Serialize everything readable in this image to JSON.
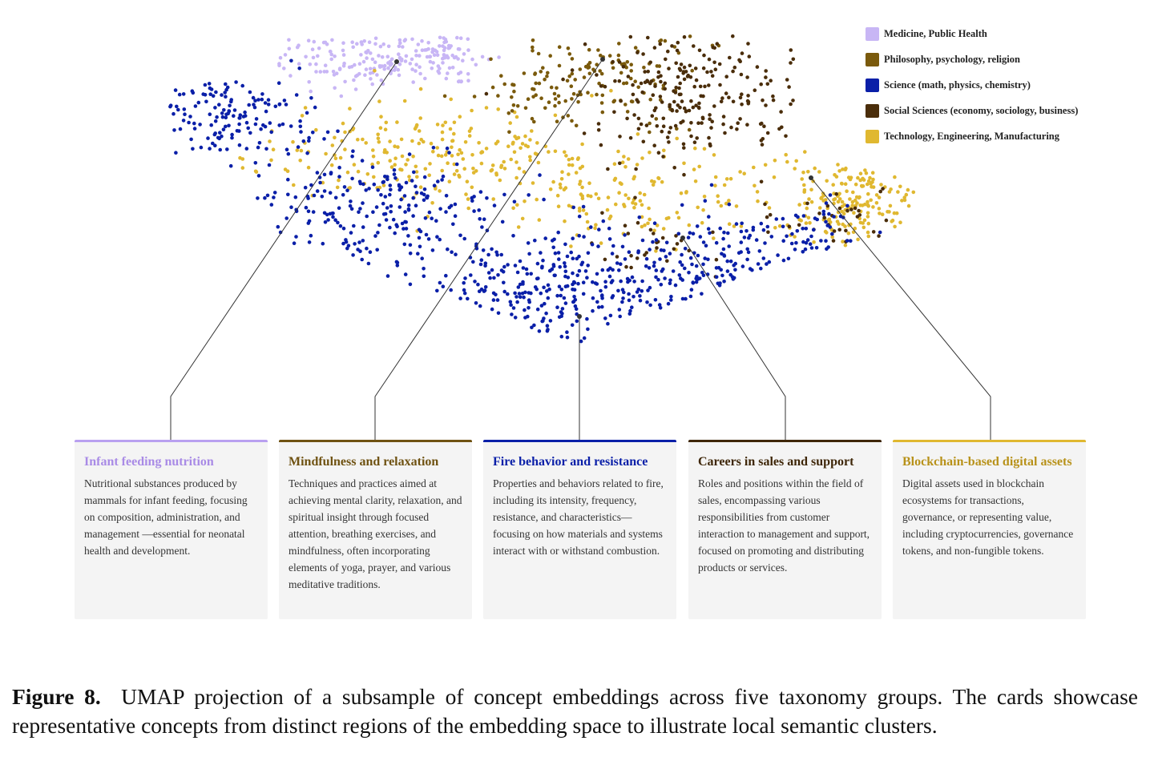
{
  "chart_data": {
    "type": "scatter",
    "title": "",
    "xlabel": "",
    "ylabel": "",
    "axes_visible": false,
    "grid": false,
    "legend_position": "top-right",
    "series": [
      {
        "name": "Medicine, Public Health",
        "color": "#c8b6f5",
        "region": "upper-left"
      },
      {
        "name": "Philosophy, psychology, religion",
        "color": "#7a5a0c",
        "region": "upper-center"
      },
      {
        "name": "Science (math, physics, chemistry)",
        "color": "#0a1fa8",
        "region": "left and lower-center"
      },
      {
        "name": "Social Sciences (economy, sociology, business)",
        "color": "#4a2d0a",
        "region": "upper-right"
      },
      {
        "name": "Technology, Engineering, Manufacturing",
        "color": "#e0b830",
        "region": "center band and right"
      }
    ]
  },
  "cards": [
    {
      "title": "Infant feeding nutrition",
      "color": "#b9a0f0",
      "title_color": "#a98be6",
      "description": "Nutritional substances produced by mammals for infant feeding, focusing on composition, administration, and management —essential for neonatal health and development."
    },
    {
      "title": "Mindfulness and relaxation",
      "color": "#6f5212",
      "title_color": "#6f5212",
      "description": "Techniques and practices aimed at achieving mental clarity, relaxation, and spiritual insight through focused attention, breathing exercises, and mindfulness, often incorporating elements of yoga, prayer, and various meditative traditions."
    },
    {
      "title": "Fire behavior and resistance",
      "color": "#0a1fa8",
      "title_color": "#0a1fa8",
      "description": "Properties and behaviors related to fire, including its intensity, frequency, resistance, and characteristics—focusing on how materials and systems interact with or withstand combustion."
    },
    {
      "title": "Careers in sales and support",
      "color": "#3e2608",
      "title_color": "#3e2608",
      "description": "Roles and positions within the field of sales, encompassing various responsibilities from customer interaction to management and support, focused on promoting and distributing products or services."
    },
    {
      "title": "Blockchain-based digital assets",
      "color": "#e0b830",
      "title_color": "#b8921a",
      "description": "Digital assets used in blockchain ecosystems for transactions, governance, or representing value, including cryptocurrencies, governance tokens, and non-fungible tokens."
    }
  ],
  "caption": {
    "label": "Figure 8.",
    "text": "UMAP projection of a subsample of concept embeddings across five taxonomy groups. The cards showcase representative concepts from distinct regions of the embedding space to illustrate local semantic clusters."
  }
}
